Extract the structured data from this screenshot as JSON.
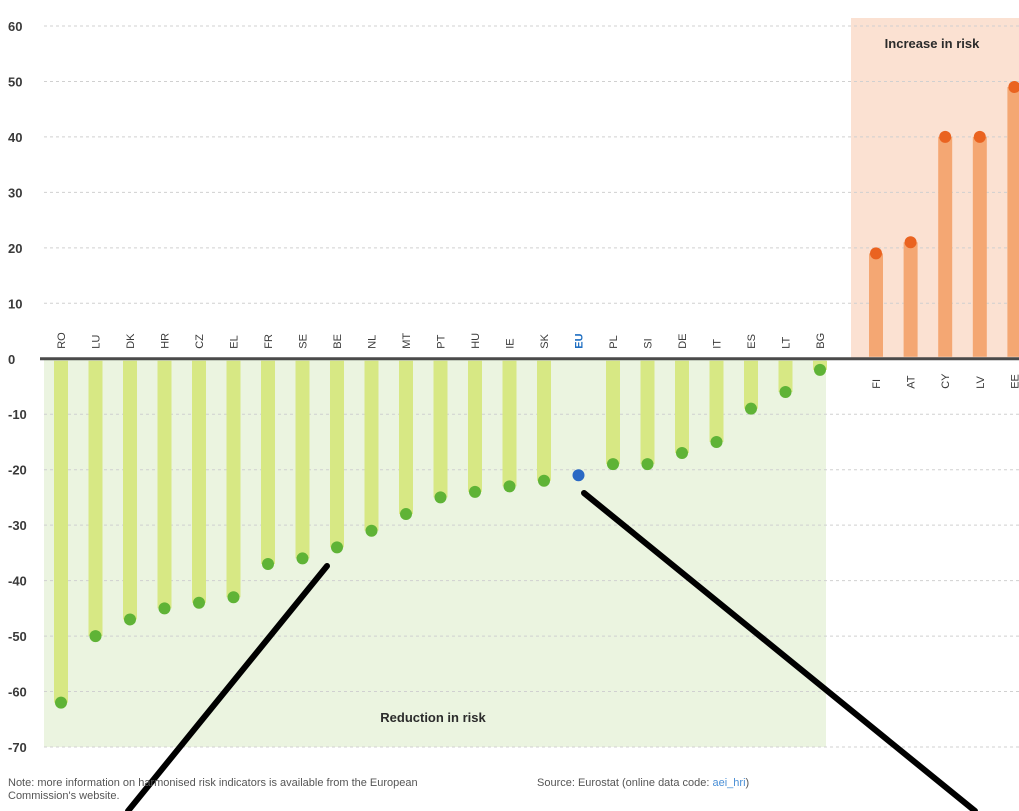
{
  "chart_data": {
    "type": "bar",
    "ylim": [
      -70,
      60
    ],
    "yticks": [
      60,
      50,
      40,
      30,
      20,
      10,
      0,
      -10,
      -20,
      -30,
      -40,
      -50,
      -60,
      -70
    ],
    "grid": true,
    "highlight_category": "EU",
    "series": [
      {
        "name": "Reduction in risk",
        "categories": [
          "RO",
          "LU",
          "DK",
          "HR",
          "CZ",
          "EL",
          "FR",
          "SE",
          "BE",
          "NL",
          "MT",
          "PT",
          "HU",
          "IE",
          "SK",
          "EU",
          "PL",
          "SI",
          "DE",
          "IT",
          "ES",
          "LT",
          "BG"
        ],
        "values": [
          -62,
          -50,
          -47,
          -45,
          -44,
          -43,
          -37,
          -36,
          -34,
          -31,
          -28,
          -25,
          -24,
          -23,
          -22,
          -21,
          -19,
          -19,
          -17,
          -15,
          -9,
          -6,
          -2
        ]
      },
      {
        "name": "Increase in risk",
        "categories": [
          "FI",
          "AT",
          "CY",
          "LV",
          "EE"
        ],
        "values": [
          19,
          21,
          40,
          40,
          49
        ]
      }
    ],
    "colors": {
      "reduction_bar": "#d7e884",
      "reduction_dot": "#5fb336",
      "reduction_bg": "#ebf4e0",
      "increase_bar": "#f4a773",
      "increase_dot": "#ea6320",
      "increase_bg": "#fbe1d2",
      "eu_dot": "#2a69c4",
      "eu_label": "#1f6fc2",
      "grid": "#d0d0d0"
    }
  },
  "footnotes": {
    "note": "Note: more information on harmonised risk indicators is available from the European Commission's website.",
    "source_prefix": "Source: Eurostat (online data code: ",
    "source_code": "aei_hri",
    "source_suffix": ")"
  }
}
